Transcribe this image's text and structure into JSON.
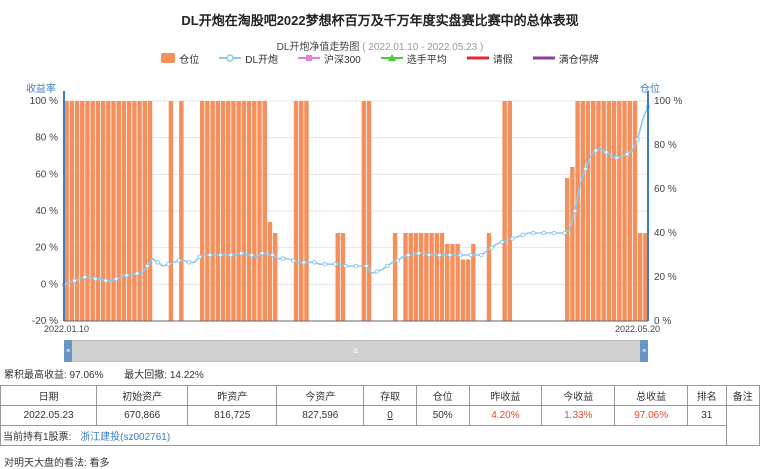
{
  "page_title": "DL开炮在淘股吧2022梦想杯百万及千万年度实盘赛比赛中的总体表现",
  "chart_title": "DL开炮净值走势图",
  "chart_date_range": "( 2022.01.10 - 2022.05.23 )",
  "legend": [
    {
      "label": "仓位",
      "symbol": "rect",
      "color": "#f58f5c"
    },
    {
      "label": "DL开炮",
      "symbol": "line",
      "color": "#8ec9ea"
    },
    {
      "label": "沪深300",
      "symbol": "line",
      "color": "#e27fd8"
    },
    {
      "label": "选手平均",
      "symbol": "line",
      "color": "#4fca3d"
    },
    {
      "label": "请假",
      "symbol": "thick",
      "color": "#e0283a"
    },
    {
      "label": "满仓停牌",
      "symbol": "thick",
      "color": "#8e3fa0"
    }
  ],
  "colors": {
    "axis_blue": "#3c7dc4",
    "bar": "#f58f5c",
    "dl": "#8ec9ea",
    "hs300": "#e27fd8",
    "avg": "#4fca3d",
    "red_text": "#e2492d"
  },
  "chart_data": {
    "type": "bar+line",
    "left_axis_label": "收益率",
    "right_axis_label": "仓位",
    "left_ticks": [
      "100 %",
      "80 %",
      "60 %",
      "40 %",
      "20 %",
      "0 %",
      "-20 %"
    ],
    "right_ticks": [
      "100 %",
      "80 %",
      "60 %",
      "40 %",
      "20 %",
      "0 %"
    ],
    "left_ylim": [
      -20,
      100
    ],
    "right_ylim": [
      0,
      100
    ],
    "x_start_label": "2022.01.10",
    "x_end_label": "2022.05.20",
    "position_bars": [
      100,
      100,
      100,
      100,
      100,
      100,
      100,
      100,
      100,
      100,
      100,
      100,
      100,
      100,
      100,
      100,
      100,
      0,
      0,
      0,
      100,
      0,
      100,
      0,
      0,
      0,
      100,
      100,
      100,
      100,
      100,
      100,
      100,
      100,
      100,
      100,
      100,
      100,
      100,
      45,
      40,
      0,
      0,
      0,
      100,
      100,
      100,
      0,
      0,
      0,
      0,
      0,
      40,
      40,
      0,
      0,
      0,
      100,
      100,
      0,
      0,
      0,
      0,
      40,
      0,
      40,
      40,
      40,
      40,
      40,
      40,
      40,
      40,
      35,
      35,
      35,
      28,
      28,
      35,
      0,
      0,
      40,
      0,
      0,
      100,
      100,
      0,
      0,
      0,
      0,
      0,
      0,
      0,
      0,
      0,
      0,
      65,
      70,
      100,
      100,
      100,
      100,
      100,
      100,
      100,
      100,
      100,
      100,
      100,
      100,
      40,
      40
    ],
    "dl_series": [
      0,
      1,
      2,
      3,
      4,
      4,
      3,
      3,
      2,
      2,
      3,
      4,
      5,
      5,
      6,
      6,
      10,
      14,
      12,
      10,
      11,
      12,
      13,
      13,
      12,
      12,
      15,
      16,
      16,
      16,
      16,
      16,
      16,
      16,
      17,
      16,
      16,
      15,
      17,
      16,
      16,
      14,
      14,
      14,
      13,
      12,
      12,
      12,
      12,
      11,
      11,
      11,
      11,
      11,
      10,
      10,
      10,
      10,
      10,
      6,
      7,
      8,
      10,
      12,
      13,
      15,
      16,
      16,
      17,
      17,
      16,
      16,
      16,
      16,
      16,
      16,
      16,
      16,
      16,
      16,
      16,
      18,
      20,
      22,
      23,
      24,
      25,
      26,
      27,
      28,
      28,
      28,
      28,
      28,
      28,
      28,
      28,
      30,
      40,
      55,
      63,
      70,
      73,
      74,
      72,
      70,
      69,
      70,
      71,
      73,
      79,
      90,
      97
    ]
  },
  "scrollbar_label": "≡",
  "summary": {
    "max_label": "累积最高收益: 97.06%",
    "drawdown_label": "最大回撤: 14.22%"
  },
  "table": {
    "headers": [
      "日期",
      "初始资产",
      "昨资产",
      "今资产",
      "存取",
      "仓位",
      "昨收益",
      "今收益",
      "总收益",
      "排名",
      "备注"
    ],
    "row": [
      "2022.05.23",
      "670,866",
      "816,725",
      "827,596",
      "0",
      "50%",
      "4.20%",
      "1.33%",
      "97.06%",
      "31",
      ""
    ],
    "holding_label": "当前持有1股票:",
    "holding_stock": "浙江建投(sz002761)"
  },
  "opinion": "对明天大盘的看法: 看多"
}
